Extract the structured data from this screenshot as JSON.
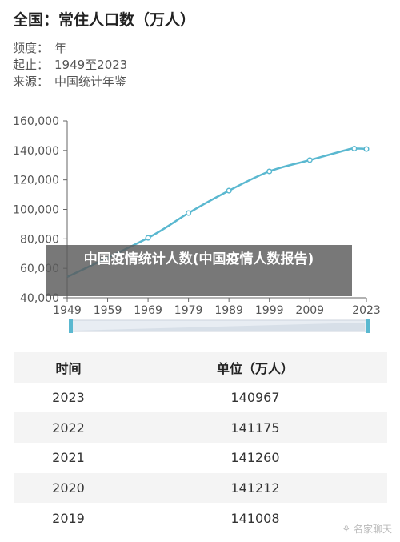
{
  "header": {
    "title": "全国：常住人口数（万人）",
    "meta": [
      {
        "key": "频度：",
        "value": "年"
      },
      {
        "key": "起止：",
        "value": "1949至2023"
      },
      {
        "key": "来源：",
        "value": "中国统计年鉴"
      }
    ]
  },
  "overlay_text": "中国疫情统计人数(中国疫情人数报告)",
  "watermark": "⚘ 名家聊天",
  "colors": {
    "line": "#5ab8d0",
    "axis": "#666666",
    "grid": "#e6e6e6",
    "slider": "#5ab8d0"
  },
  "chart_data": {
    "type": "line",
    "x": [
      1949,
      1969,
      1979,
      1989,
      1999,
      2009,
      2019,
      2020,
      2021,
      2022,
      2023
    ],
    "y": [
      54167,
      80671,
      97542,
      112704,
      125786,
      133450,
      141008,
      141212,
      141260,
      141175,
      140967
    ],
    "x_ticks": [
      "1949",
      "1959",
      "1969",
      "1979",
      "1989",
      "1999",
      "2009",
      "2023"
    ],
    "y_ticks": [
      "40,000",
      "60,000",
      "80,000",
      "100,000",
      "120,000",
      "140,000",
      "160,000"
    ],
    "ylim": [
      40000,
      160000
    ],
    "xlim": [
      1949,
      2023
    ],
    "grid": false
  },
  "table": {
    "headers": [
      "时间",
      "单位（万人）"
    ],
    "rows": [
      [
        "2023",
        "140967"
      ],
      [
        "2022",
        "141175"
      ],
      [
        "2021",
        "141260"
      ],
      [
        "2020",
        "141212"
      ],
      [
        "2019",
        "141008"
      ]
    ]
  }
}
